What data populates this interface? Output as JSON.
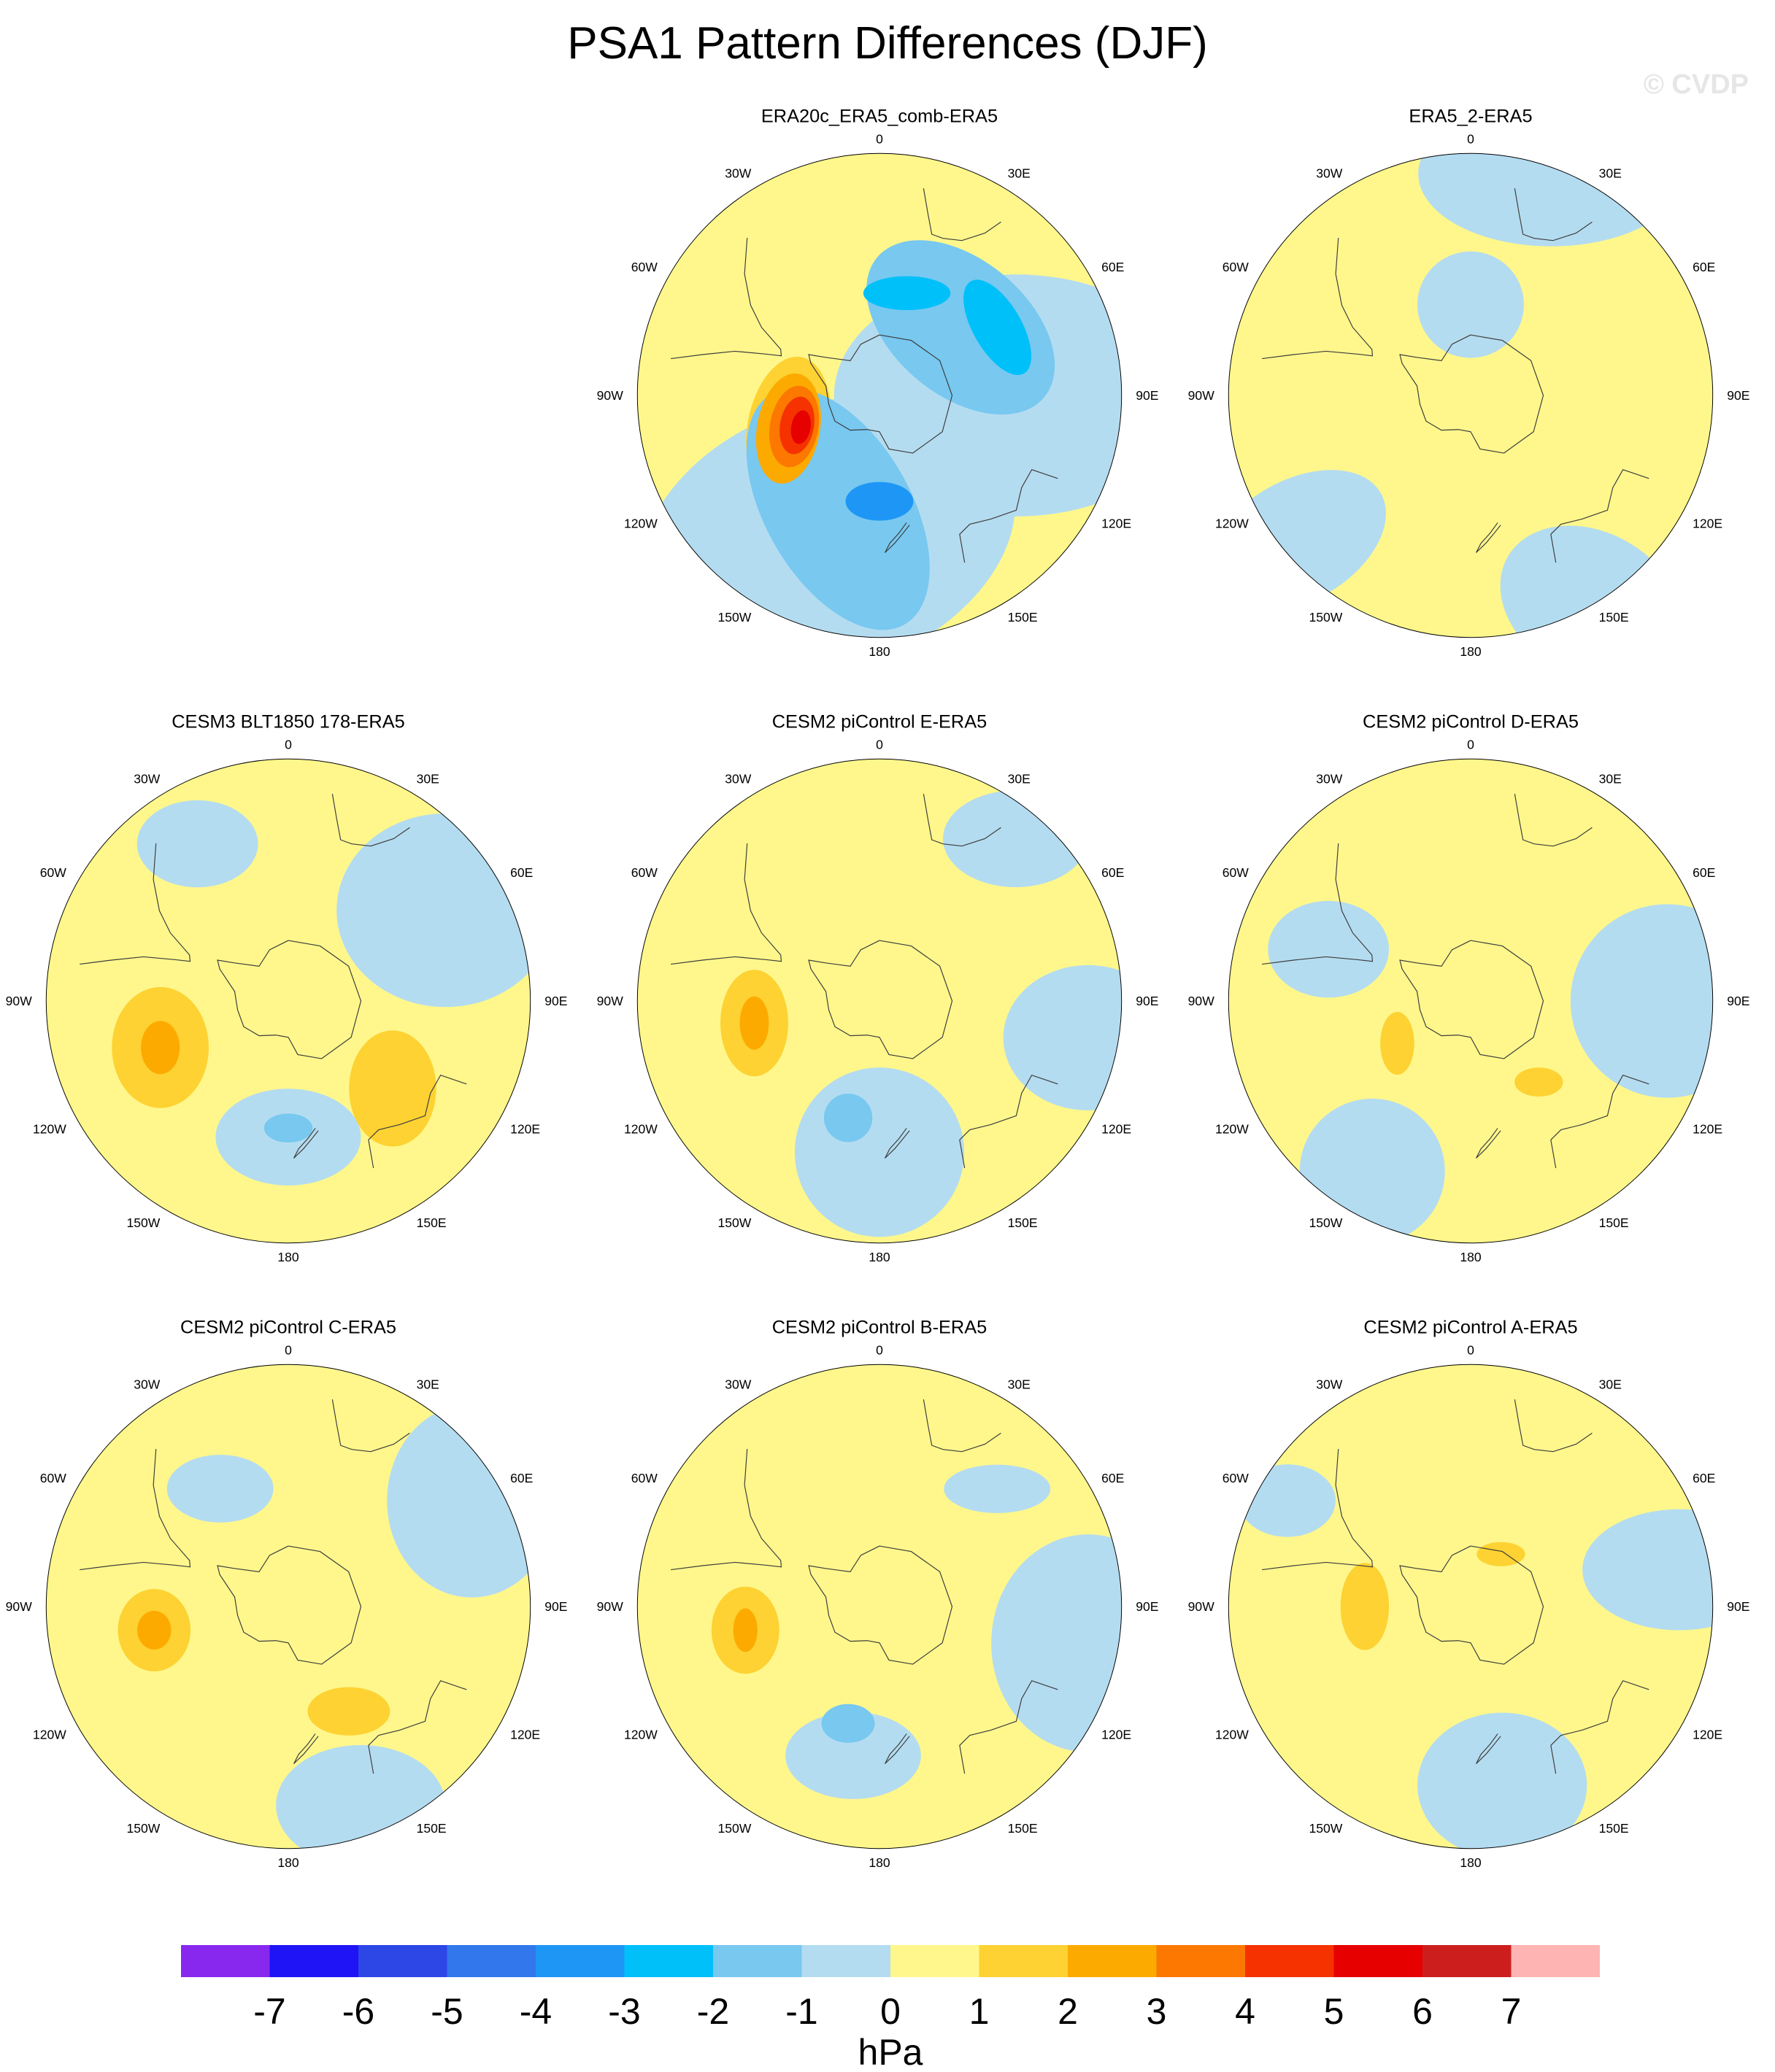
{
  "title": "PSA1 Pattern Differences (DJF)",
  "watermark": "© CVDP",
  "unit_label": "hPa",
  "colorbar": {
    "ticks": [
      "-7",
      "-6",
      "-5",
      "-4",
      "-3",
      "-2",
      "-1",
      "0",
      "1",
      "2",
      "3",
      "4",
      "5",
      "6",
      "7"
    ],
    "colors": [
      "#8828ee",
      "#1e14f5",
      "#2d46e6",
      "#3278ec",
      "#1e96f5",
      "#00c0fa",
      "#78c8f0",
      "#b4dcf0",
      "#fff78c",
      "#fdd232",
      "#fcaa00",
      "#fc7800",
      "#f53200",
      "#e60000",
      "#cd1e1e",
      "#ffb4b4"
    ]
  },
  "map_style": {
    "ocean_base": "#fff78c",
    "coast_color": "#3c3c3c",
    "rim_color": "#000000"
  },
  "lon_labels": [
    "0",
    "30E",
    "60E",
    "90E",
    "120E",
    "150E",
    "180",
    "150W",
    "120W",
    "90W",
    "60W",
    "30W"
  ],
  "panels": [
    {
      "id": "era20c",
      "row": 0,
      "col": 1,
      "title": "ERA20c_ERA5_comb-ERA5",
      "features": [
        {
          "type": "blob",
          "level": -1,
          "lon": 200,
          "lat": -40,
          "rx": 0.8,
          "ry": 0.55,
          "rot": -20
        },
        {
          "type": "blob",
          "level": -1,
          "lon": 90,
          "lat": -45,
          "rx": 0.75,
          "ry": 0.5,
          "rot": 0
        },
        {
          "type": "blob",
          "level": -2,
          "lon": 50,
          "lat": -55,
          "rx": 0.45,
          "ry": 0.28,
          "rot": 40
        },
        {
          "type": "blob",
          "level": -2,
          "lon": 200,
          "lat": -50,
          "rx": 0.55,
          "ry": 0.3,
          "rot": 60
        },
        {
          "type": "blob",
          "level": -3,
          "lon": 15,
          "lat": -55,
          "rx": 0.18,
          "ry": 0.07,
          "rot": 0
        },
        {
          "type": "blob",
          "level": -3,
          "lon": 60,
          "lat": -45,
          "rx": 0.22,
          "ry": 0.1,
          "rot": 60
        },
        {
          "type": "blob",
          "level": -4,
          "lon": 180,
          "lat": -55,
          "rx": 0.14,
          "ry": 0.08,
          "rot": 0
        },
        {
          "type": "blob",
          "level": 1,
          "lon": 250,
          "lat": -58,
          "rx": 0.17,
          "ry": 0.3,
          "rot": 10
        },
        {
          "type": "blob",
          "level": 2,
          "lon": 250,
          "lat": -58,
          "rx": 0.13,
          "ry": 0.23,
          "rot": 10
        },
        {
          "type": "blob",
          "level": 3,
          "lon": 250,
          "lat": -60,
          "rx": 0.1,
          "ry": 0.17,
          "rot": 10
        },
        {
          "type": "blob",
          "level": 4,
          "lon": 250,
          "lat": -61,
          "rx": 0.07,
          "ry": 0.12,
          "rot": 10
        },
        {
          "type": "blob",
          "level": 5,
          "lon": 248,
          "lat": -62,
          "rx": 0.04,
          "ry": 0.07,
          "rot": 10
        },
        {
          "type": "blob",
          "level": 0,
          "lon": 130,
          "lat": -10,
          "rx": 0.3,
          "ry": 0.25,
          "rot": 0
        },
        {
          "type": "blob",
          "level": 0,
          "lon": 340,
          "lat": -10,
          "rx": 0.2,
          "ry": 0.15,
          "rot": 0
        }
      ]
    },
    {
      "id": "era5_2",
      "row": 0,
      "col": 2,
      "title": "ERA5_2-ERA5",
      "features": [
        {
          "type": "blob",
          "level": -1,
          "lon": 20,
          "lat": -12,
          "rx": 0.55,
          "ry": 0.3,
          "rot": 0
        },
        {
          "type": "blob",
          "level": -1,
          "lon": 0,
          "lat": -60,
          "rx": 0.22,
          "ry": 0.22,
          "rot": 0
        },
        {
          "type": "blob",
          "level": -1,
          "lon": 230,
          "lat": -15,
          "rx": 0.4,
          "ry": 0.25,
          "rot": -30
        },
        {
          "type": "blob",
          "level": -1,
          "lon": 150,
          "lat": -10,
          "rx": 0.4,
          "ry": 0.3,
          "rot": 30
        }
      ]
    },
    {
      "id": "cesm3",
      "row": 1,
      "col": 0,
      "title": "CESM3 BLT1850 178-ERA5",
      "features": [
        {
          "type": "blob",
          "level": -1,
          "lon": 60,
          "lat": -30,
          "rx": 0.45,
          "ry": 0.4,
          "rot": 0
        },
        {
          "type": "blob",
          "level": -1,
          "lon": 180,
          "lat": -45,
          "rx": 0.3,
          "ry": 0.2,
          "rot": 0
        },
        {
          "type": "blob",
          "level": -1,
          "lon": 330,
          "lat": -30,
          "rx": 0.25,
          "ry": 0.18,
          "rot": 0
        },
        {
          "type": "blob",
          "level": -2,
          "lon": 180,
          "lat": -48,
          "rx": 0.1,
          "ry": 0.06,
          "rot": 0
        },
        {
          "type": "blob",
          "level": 1,
          "lon": 250,
          "lat": -45,
          "rx": 0.2,
          "ry": 0.25,
          "rot": 0
        },
        {
          "type": "blob",
          "level": 2,
          "lon": 250,
          "lat": -45,
          "rx": 0.08,
          "ry": 0.11,
          "rot": 0
        },
        {
          "type": "blob",
          "level": 1,
          "lon": 130,
          "lat": -45,
          "rx": 0.18,
          "ry": 0.24,
          "rot": 0
        }
      ]
    },
    {
      "id": "cesm2e",
      "row": 1,
      "col": 1,
      "title": "CESM2 piControl E-ERA5",
      "features": [
        {
          "type": "blob",
          "level": -1,
          "lon": 180,
          "lat": -40,
          "rx": 0.35,
          "ry": 0.35,
          "rot": 0
        },
        {
          "type": "blob",
          "level": -1,
          "lon": 40,
          "lat": -20,
          "rx": 0.3,
          "ry": 0.2,
          "rot": 0
        },
        {
          "type": "blob",
          "level": -1,
          "lon": 100,
          "lat": -20,
          "rx": 0.35,
          "ry": 0.3,
          "rot": 0
        },
        {
          "type": "blob",
          "level": -2,
          "lon": 195,
          "lat": -50,
          "rx": 0.1,
          "ry": 0.1,
          "rot": 0
        },
        {
          "type": "blob",
          "level": 1,
          "lon": 260,
          "lat": -48,
          "rx": 0.14,
          "ry": 0.22,
          "rot": 0
        },
        {
          "type": "blob",
          "level": 2,
          "lon": 260,
          "lat": -48,
          "rx": 0.06,
          "ry": 0.11,
          "rot": 0
        }
      ]
    },
    {
      "id": "cesm2d",
      "row": 1,
      "col": 2,
      "title": "CESM2 piControl D-ERA5",
      "features": [
        {
          "type": "blob",
          "level": -1,
          "lon": 90,
          "lat": -25,
          "rx": 0.4,
          "ry": 0.4,
          "rot": 0
        },
        {
          "type": "blob",
          "level": -1,
          "lon": 210,
          "lat": -25,
          "rx": 0.3,
          "ry": 0.3,
          "rot": 0
        },
        {
          "type": "blob",
          "level": -1,
          "lon": 290,
          "lat": -40,
          "rx": 0.25,
          "ry": 0.2,
          "rot": 0
        },
        {
          "type": "blob",
          "level": 0,
          "lon": 100,
          "lat": -50,
          "rx": 0.22,
          "ry": 0.15,
          "rot": 0
        },
        {
          "type": "blob",
          "level": 1,
          "lon": 240,
          "lat": -62,
          "rx": 0.07,
          "ry": 0.13,
          "rot": 0
        },
        {
          "type": "blob",
          "level": 1,
          "lon": 140,
          "lat": -55,
          "rx": 0.1,
          "ry": 0.06,
          "rot": 0
        }
      ]
    },
    {
      "id": "cesm2c",
      "row": 2,
      "col": 0,
      "title": "CESM2 piControl C-ERA5",
      "features": [
        {
          "type": "blob",
          "level": -1,
          "lon": 60,
          "lat": -20,
          "rx": 0.35,
          "ry": 0.4,
          "rot": 0
        },
        {
          "type": "blob",
          "level": -1,
          "lon": 160,
          "lat": -20,
          "rx": 0.35,
          "ry": 0.25,
          "rot": 0
        },
        {
          "type": "blob",
          "level": -1,
          "lon": 330,
          "lat": -45,
          "rx": 0.22,
          "ry": 0.14,
          "rot": 0
        },
        {
          "type": "blob",
          "level": 1,
          "lon": 260,
          "lat": -45,
          "rx": 0.15,
          "ry": 0.17,
          "rot": 0
        },
        {
          "type": "blob",
          "level": 2,
          "lon": 260,
          "lat": -45,
          "rx": 0.07,
          "ry": 0.08,
          "rot": 0
        },
        {
          "type": "blob",
          "level": 1,
          "lon": 150,
          "lat": -50,
          "rx": 0.17,
          "ry": 0.1,
          "rot": 0
        }
      ]
    },
    {
      "id": "cesm2b",
      "row": 2,
      "col": 1,
      "title": "CESM2 piControl B-ERA5",
      "features": [
        {
          "type": "blob",
          "level": -1,
          "lon": 100,
          "lat": -20,
          "rx": 0.4,
          "ry": 0.45,
          "rot": 0
        },
        {
          "type": "blob",
          "level": -1,
          "lon": 190,
          "lat": -40,
          "rx": 0.28,
          "ry": 0.18,
          "rot": 0
        },
        {
          "type": "blob",
          "level": -1,
          "lon": 45,
          "lat": -35,
          "rx": 0.22,
          "ry": 0.1,
          "rot": 0
        },
        {
          "type": "blob",
          "level": -2,
          "lon": 195,
          "lat": -50,
          "rx": 0.11,
          "ry": 0.08,
          "rot": 0
        },
        {
          "type": "blob",
          "level": 1,
          "lon": 260,
          "lat": -45,
          "rx": 0.14,
          "ry": 0.18,
          "rot": 0
        },
        {
          "type": "blob",
          "level": 2,
          "lon": 260,
          "lat": -45,
          "rx": 0.05,
          "ry": 0.09,
          "rot": 0
        }
      ]
    },
    {
      "id": "cesm2a",
      "row": 2,
      "col": 2,
      "title": "CESM2 piControl A-ERA5",
      "features": [
        {
          "type": "blob",
          "level": -1,
          "lon": 170,
          "lat": -30,
          "rx": 0.35,
          "ry": 0.3,
          "rot": 0
        },
        {
          "type": "blob",
          "level": -1,
          "lon": 80,
          "lat": -20,
          "rx": 0.4,
          "ry": 0.25,
          "rot": 0
        },
        {
          "type": "blob",
          "level": -1,
          "lon": 300,
          "lat": -20,
          "rx": 0.2,
          "ry": 0.15,
          "rot": 0
        },
        {
          "type": "blob",
          "level": 1,
          "lon": 270,
          "lat": -55,
          "rx": 0.1,
          "ry": 0.18,
          "rot": 0
        },
        {
          "type": "blob",
          "level": 1,
          "lon": 30,
          "lat": -70,
          "rx": 0.1,
          "ry": 0.05,
          "rot": 0
        }
      ]
    }
  ]
}
